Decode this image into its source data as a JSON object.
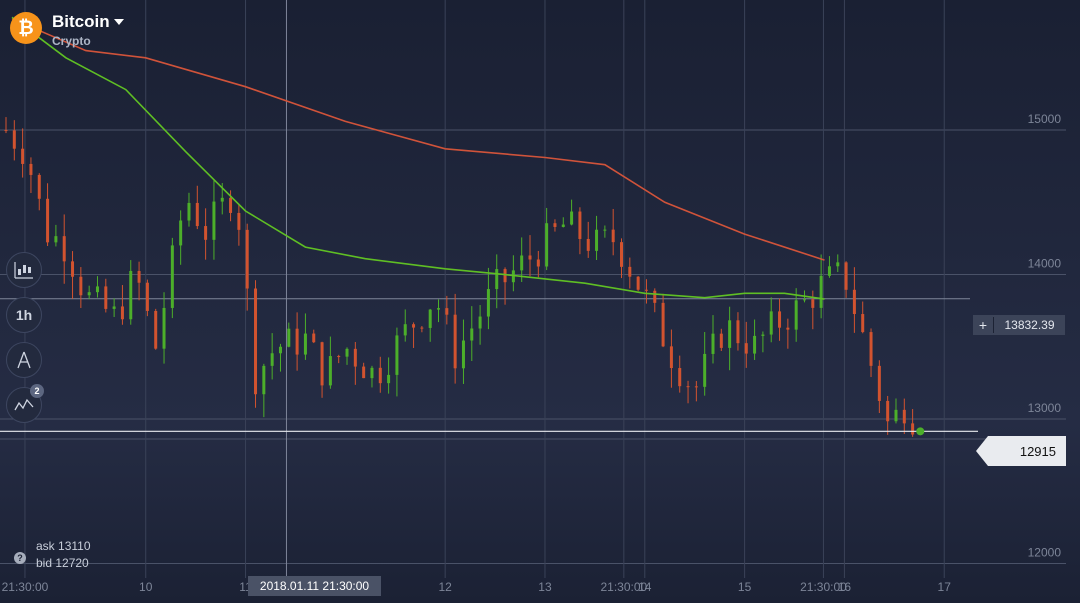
{
  "asset": {
    "name": "Bitcoin",
    "category": "Crypto",
    "logo_glyph": "₿",
    "logo_color": "#f7931a"
  },
  "tools": {
    "chart_type_icon": "candlestick-chart-icon",
    "timeframe_label": "1h",
    "drawing_icon": "drawing-tool-icon",
    "indicators_icon": "indicators-icon",
    "indicators_count": "2"
  },
  "quotes": {
    "ask_label": "ask",
    "ask_value": "13110",
    "bid_label": "bid",
    "bid_value": "12720",
    "help_glyph": "?"
  },
  "current_price": "12915",
  "crosshair": {
    "plus": "+",
    "value": "13832.39"
  },
  "crosshair_time": "2018.01.11 21:30:00",
  "colors": {
    "background": "#1c2234",
    "up_candle": "#4caf2a",
    "down_candle": "#d2532f",
    "ma_slow": "#d0533a",
    "ma_fast": "#5fbf24"
  },
  "chart_data": {
    "type": "candlestick",
    "y_ticks": [
      "15000",
      "14000",
      "13000",
      "12000"
    ],
    "y_range": [
      11900,
      15900
    ],
    "x_ticks": [
      "21:30:00",
      "10",
      "11",
      "12",
      "13",
      "21:30:00",
      "14",
      "15",
      "21:30:00",
      "16",
      "17"
    ],
    "x_tick_days": [
      9.395,
      10,
      10.5,
      11.5,
      12,
      12.395,
      12.5,
      13,
      13.395,
      13.5,
      14
    ],
    "x_range_days": [
      9.27,
      14.61
    ],
    "price_line": 12915,
    "crosshair_price": 13832.39,
    "crosshair_day": 10.705,
    "ma_slow": [
      [
        9.33,
        15770
      ],
      [
        9.7,
        15550
      ],
      [
        10.0,
        15500
      ],
      [
        10.5,
        15300
      ],
      [
        11.0,
        15060
      ],
      [
        11.5,
        14870
      ],
      [
        12.0,
        14810
      ],
      [
        12.3,
        14760
      ],
      [
        12.6,
        14500
      ],
      [
        13.0,
        14280
      ],
      [
        13.4,
        14100
      ]
    ],
    "ma_fast": [
      [
        9.33,
        15780
      ],
      [
        9.6,
        15500
      ],
      [
        9.9,
        15280
      ],
      [
        10.2,
        14850
      ],
      [
        10.5,
        14440
      ],
      [
        10.8,
        14190
      ],
      [
        11.1,
        14110
      ],
      [
        11.5,
        14040
      ],
      [
        11.8,
        14000
      ],
      [
        12.2,
        13940
      ],
      [
        12.5,
        13870
      ],
      [
        12.8,
        13840
      ],
      [
        13.0,
        13870
      ],
      [
        13.2,
        13870
      ],
      [
        13.4,
        13830
      ]
    ]
  }
}
